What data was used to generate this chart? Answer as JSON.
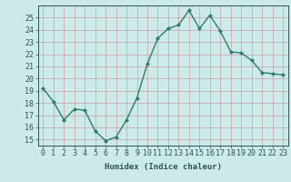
{
  "x": [
    0,
    1,
    2,
    3,
    4,
    5,
    6,
    7,
    8,
    9,
    10,
    11,
    12,
    13,
    14,
    15,
    16,
    17,
    18,
    19,
    20,
    21,
    22,
    23
  ],
  "y": [
    19.2,
    18.1,
    16.6,
    17.5,
    17.4,
    15.7,
    14.9,
    15.2,
    16.6,
    18.4,
    21.2,
    23.3,
    24.1,
    24.4,
    25.6,
    24.1,
    25.2,
    23.9,
    22.2,
    22.1,
    21.5,
    20.5,
    20.4,
    20.3
  ],
  "line_color": "#2e7d6e",
  "marker": "D",
  "marker_size": 2,
  "bg_color": "#cceaea",
  "grid_color": "#c8a0a0",
  "xlabel": "Humidex (Indice chaleur)",
  "ylim": [
    14.5,
    26.0
  ],
  "xlim": [
    -0.5,
    23.5
  ],
  "yticks": [
    15,
    16,
    17,
    18,
    19,
    20,
    21,
    22,
    23,
    24,
    25
  ],
  "xticks": [
    0,
    1,
    2,
    3,
    4,
    5,
    6,
    7,
    8,
    9,
    10,
    11,
    12,
    13,
    14,
    15,
    16,
    17,
    18,
    19,
    20,
    21,
    22,
    23
  ],
  "font_color": "#2e5555",
  "xlabel_fontsize": 6.5,
  "tick_fontsize": 6,
  "lw": 1.0
}
